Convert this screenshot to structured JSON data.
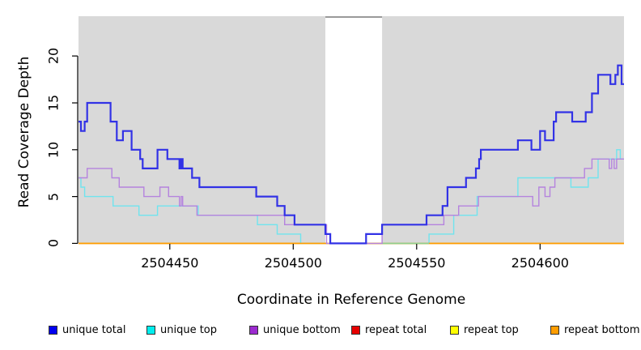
{
  "chart_data": {
    "type": "line",
    "subtype": "step-coverage",
    "title": "",
    "xlabel": "Coordinate in Reference Genome",
    "ylabel": "Read Coverage Depth",
    "x_range": [
      2504413,
      2504634
    ],
    "y_range": [
      -0.05,
      24.25
    ],
    "x_ticks": [
      2504450,
      2504500,
      2504550,
      2504600
    ],
    "x_tick_labels": [
      "2504450",
      "2504500",
      "2504550",
      "2504600"
    ],
    "y_ticks": [
      0,
      5,
      10,
      15,
      20
    ],
    "y_tick_labels": [
      "0",
      "5",
      "10",
      "15",
      "20"
    ],
    "grid": "off",
    "plot_bg": "#d9d9d9",
    "axis_color": "#000000",
    "gap_region": {
      "x_start": 2504513,
      "x_end": 2504536,
      "color": "#ffffff",
      "top_border_color": "#999999"
    },
    "zero_blend_segment": {
      "x_start": 2504536,
      "x_end": 2504555,
      "value": 0,
      "color": "#8fcf90"
    },
    "series": [
      {
        "name": "unique total",
        "color": "#3232e6",
        "width": 2.2,
        "steps": [
          [
            2504413,
            13
          ],
          [
            2504414,
            12
          ],
          [
            2504415.5,
            13
          ],
          [
            2504416.5,
            15
          ],
          [
            2504426,
            13
          ],
          [
            2504428.5,
            11
          ],
          [
            2504431,
            12
          ],
          [
            2504434.5,
            10
          ],
          [
            2504438,
            9
          ],
          [
            2504439,
            8
          ],
          [
            2504445,
            10
          ],
          [
            2504449,
            9
          ],
          [
            2504453.9,
            8
          ],
          [
            2504454.6,
            9
          ],
          [
            2504455.2,
            8
          ],
          [
            2504459,
            7
          ],
          [
            2504462,
            6
          ],
          [
            2504485,
            5
          ],
          [
            2504493.5,
            4
          ],
          [
            2504496.5,
            3
          ],
          [
            2504500.5,
            2
          ],
          [
            2504513,
            1
          ],
          [
            2504515,
            0
          ],
          [
            2504529.5,
            1
          ],
          [
            2504536,
            2
          ],
          [
            2504554,
            3
          ],
          [
            2504560.5,
            4
          ],
          [
            2504562.5,
            6
          ],
          [
            2504570,
            7
          ],
          [
            2504574,
            8
          ],
          [
            2504575.3,
            9
          ],
          [
            2504576,
            10
          ],
          [
            2504591,
            11
          ],
          [
            2504596.5,
            10
          ],
          [
            2504600,
            12
          ],
          [
            2504602,
            11
          ],
          [
            2504605.5,
            13
          ],
          [
            2504606.5,
            14
          ],
          [
            2504613,
            13
          ],
          [
            2504618.5,
            14
          ],
          [
            2504621,
            16
          ],
          [
            2504623.5,
            18
          ],
          [
            2504628.5,
            17
          ],
          [
            2504630.5,
            18
          ],
          [
            2504631.5,
            19
          ],
          [
            2504633,
            17
          ]
        ]
      },
      {
        "name": "unique top",
        "color": "#70e4ee",
        "width": 1.4,
        "steps": [
          [
            2504413,
            7
          ],
          [
            2504414,
            6
          ],
          [
            2504415.5,
            5
          ],
          [
            2504427,
            4
          ],
          [
            2504437.5,
            3
          ],
          [
            2504445,
            4
          ],
          [
            2504461.5,
            3
          ],
          [
            2504485.5,
            2
          ],
          [
            2504493.5,
            1
          ],
          [
            2504503,
            0
          ],
          [
            2504555,
            1
          ],
          [
            2504565,
            3
          ],
          [
            2504574.5,
            5
          ],
          [
            2504591,
            7
          ],
          [
            2504612.5,
            6
          ],
          [
            2504619.5,
            7
          ],
          [
            2504623.5,
            9
          ],
          [
            2504631,
            10
          ],
          [
            2504632.5,
            9
          ]
        ]
      },
      {
        "name": "unique bottom",
        "color": "#b583de",
        "width": 1.4,
        "steps": [
          [
            2504413,
            7
          ],
          [
            2504416.5,
            8
          ],
          [
            2504426.5,
            7
          ],
          [
            2504429.5,
            6
          ],
          [
            2504439.5,
            5
          ],
          [
            2504446,
            6
          ],
          [
            2504449.5,
            5
          ],
          [
            2504453.9,
            4
          ],
          [
            2504454.6,
            5
          ],
          [
            2504455.2,
            4
          ],
          [
            2504461,
            3
          ],
          [
            2504496.5,
            2
          ],
          [
            2504513.5,
            0
          ],
          [
            2504536,
            2
          ],
          [
            2504561,
            3
          ],
          [
            2504567,
            4
          ],
          [
            2504575,
            5
          ],
          [
            2504597,
            4
          ],
          [
            2504599.5,
            6
          ],
          [
            2504602,
            5
          ],
          [
            2504604,
            6
          ],
          [
            2504606,
            7
          ],
          [
            2504618,
            8
          ],
          [
            2504621,
            9
          ],
          [
            2504628,
            8
          ],
          [
            2504629,
            9
          ],
          [
            2504630,
            8
          ],
          [
            2504631,
            9
          ]
        ]
      },
      {
        "name": "repeat total",
        "color": "#dd0000",
        "width": 1.4,
        "steps": [
          [
            2504413,
            0
          ]
        ]
      },
      {
        "name": "repeat top",
        "color": "#ffff00",
        "width": 1.4,
        "steps": [
          [
            2504413,
            0
          ]
        ]
      },
      {
        "name": "repeat bottom",
        "color": "#ff9d00",
        "width": 1.6,
        "steps": [
          [
            2504413,
            0
          ]
        ]
      }
    ],
    "legend": {
      "position": "bottom",
      "items": [
        {
          "label": "unique total",
          "color": "#0000f0"
        },
        {
          "label": "unique top",
          "color": "#00eeee"
        },
        {
          "label": "unique bottom",
          "color": "#9c2bd0"
        },
        {
          "label": "repeat total",
          "color": "#e60000"
        },
        {
          "label": "repeat top",
          "color": "#ffff00"
        },
        {
          "label": "repeat bottom",
          "color": "#ff9d00"
        }
      ]
    }
  }
}
